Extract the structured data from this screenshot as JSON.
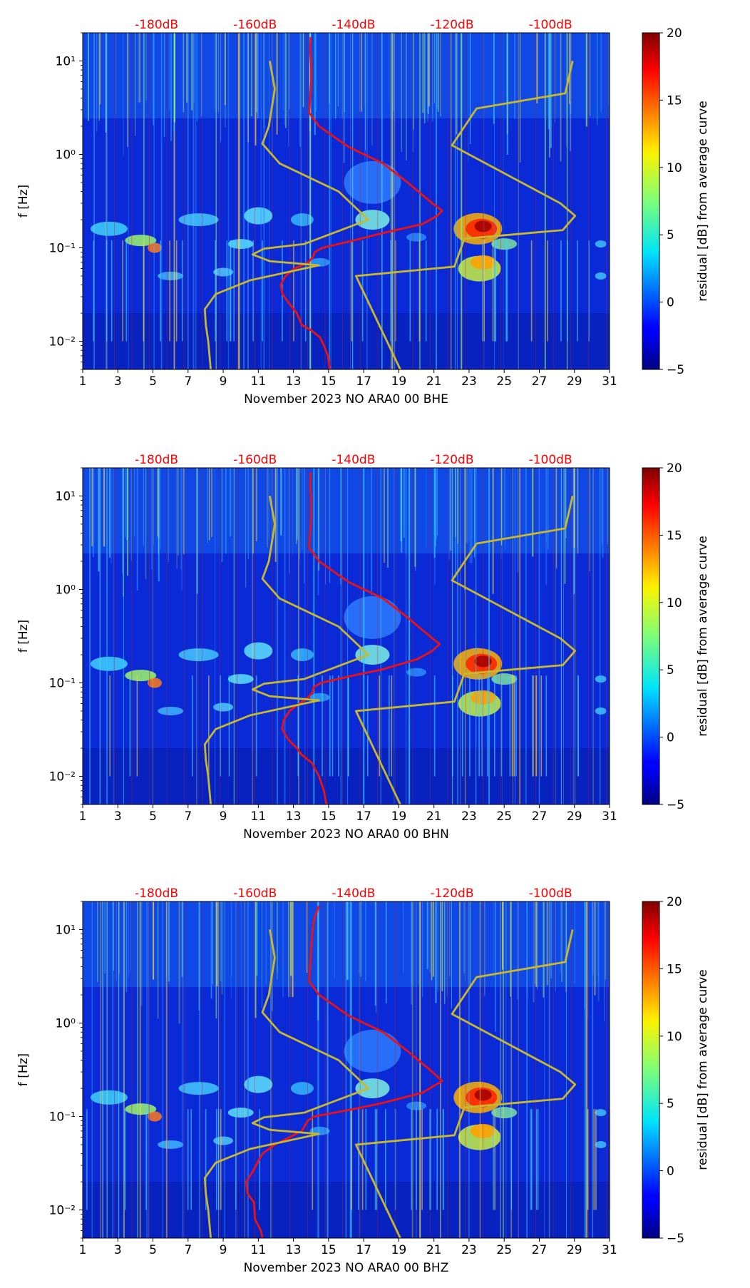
{
  "chart_data": [
    {
      "type": "heatmap",
      "xlabel": "November 2023 NO ARA0 00 BHE",
      "ylabel": "f [Hz]",
      "colorbar_label": "residual [dB] from average curve",
      "clim": [
        -5,
        20
      ],
      "colorbar_ticks": [
        "20",
        "15",
        "10",
        "5",
        "0",
        "−5"
      ],
      "colorbar_tick_values": [
        20,
        15,
        10,
        5,
        0,
        -5
      ],
      "xlim": [
        1,
        31
      ],
      "x_ticks": [
        "1",
        "3",
        "5",
        "7",
        "9",
        "11",
        "13",
        "15",
        "17",
        "19",
        "21",
        "23",
        "25",
        "27",
        "29",
        "31"
      ],
      "x_tick_values": [
        1,
        3,
        5,
        7,
        9,
        11,
        13,
        15,
        17,
        19,
        21,
        23,
        25,
        27,
        29,
        31
      ],
      "ylim": [
        0.005,
        20
      ],
      "y_scale": "log",
      "y_ticks": [
        "10¹",
        "10⁰",
        "10⁻¹",
        "10⁻²"
      ],
      "y_tick_values": [
        10,
        1,
        0.1,
        0.01
      ],
      "top_axis_ticks": [
        "-180dB",
        "-160dB",
        "-140dB",
        "-120dB",
        "-100dB"
      ],
      "top_axis_values": [
        -180,
        -160,
        -140,
        -120,
        -100
      ],
      "top_axis_color": "#ff0000",
      "series": [
        {
          "name": "average PSD (red)",
          "color": "#ee1111",
          "points": [
            [
              0.005,
              -144.8
            ],
            [
              0.007,
              -145.2
            ],
            [
              0.009,
              -146
            ],
            [
              0.011,
              -146.8
            ],
            [
              0.013,
              -148.5
            ],
            [
              0.015,
              -150.5
            ],
            [
              0.02,
              -151.5
            ],
            [
              0.025,
              -153
            ],
            [
              0.032,
              -154.4
            ],
            [
              0.04,
              -154.8
            ],
            [
              0.05,
              -153.8
            ],
            [
              0.06,
              -152
            ],
            [
              0.07,
              -149.2
            ],
            [
              0.08,
              -148.2
            ],
            [
              0.09,
              -147.9
            ],
            [
              0.1,
              -146.3
            ],
            [
              0.12,
              -140
            ],
            [
              0.14,
              -135
            ],
            [
              0.18,
              -126
            ],
            [
              0.22,
              -123
            ],
            [
              0.25,
              -122
            ],
            [
              0.3,
              -124
            ],
            [
              0.5,
              -129
            ],
            [
              0.8,
              -134
            ],
            [
              1.2,
              -141
            ],
            [
              2,
              -147
            ],
            [
              2.8,
              -149
            ],
            [
              4,
              -148.8
            ],
            [
              6,
              -148.6
            ],
            [
              9,
              -148.6
            ],
            [
              13,
              -148.8
            ],
            [
              18,
              -148.7
            ]
          ]
        },
        {
          "name": "NLNM (yellow)",
          "color": "#c8b82e",
          "points": [
            [
              0.005,
              -169
            ],
            [
              0.01,
              -169.5
            ],
            [
              0.015,
              -170
            ],
            [
              0.022,
              -170.2
            ],
            [
              0.032,
              -168
            ],
            [
              0.045,
              -161
            ],
            [
              0.065,
              -147
            ],
            [
              0.072,
              -157
            ],
            [
              0.085,
              -160.5
            ],
            [
              0.098,
              -158.2
            ],
            [
              0.11,
              -150
            ],
            [
              0.2,
              -137
            ],
            [
              0.4,
              -143
            ],
            [
              0.8,
              -155
            ],
            [
              1.3,
              -158.5
            ],
            [
              2,
              -157.2
            ],
            [
              5,
              -156
            ],
            [
              10,
              -157
            ]
          ]
        },
        {
          "name": "NHNM (yellow)",
          "color": "#c8b82e",
          "points": [
            [
              0.005,
              -130.5
            ],
            [
              0.05,
              -139.5
            ],
            [
              0.063,
              -119.5
            ],
            [
              0.125,
              -117.5
            ],
            [
              0.155,
              -97.5
            ],
            [
              0.22,
              -95
            ],
            [
              0.3,
              -98
            ],
            [
              1.25,
              -120
            ],
            [
              3.1,
              -115
            ],
            [
              4.5,
              -97
            ],
            [
              10,
              -95.5
            ]
          ]
        }
      ]
    },
    {
      "type": "heatmap",
      "xlabel": "November 2023 NO ARA0 00 BHN",
      "ylabel": "f [Hz]",
      "colorbar_label": "residual [dB] from average curve",
      "clim": [
        -5,
        20
      ],
      "colorbar_ticks": [
        "20",
        "15",
        "10",
        "5",
        "0",
        "−5"
      ],
      "colorbar_tick_values": [
        20,
        15,
        10,
        5,
        0,
        -5
      ],
      "xlim": [
        1,
        31
      ],
      "x_ticks": [
        "1",
        "3",
        "5",
        "7",
        "9",
        "11",
        "13",
        "15",
        "17",
        "19",
        "21",
        "23",
        "25",
        "27",
        "29",
        "31"
      ],
      "x_tick_values": [
        1,
        3,
        5,
        7,
        9,
        11,
        13,
        15,
        17,
        19,
        21,
        23,
        25,
        27,
        29,
        31
      ],
      "ylim": [
        0.005,
        20
      ],
      "y_scale": "log",
      "y_ticks": [
        "10¹",
        "10⁰",
        "10⁻¹",
        "10⁻²"
      ],
      "y_tick_values": [
        10,
        1,
        0.1,
        0.01
      ],
      "top_axis_ticks": [
        "-180dB",
        "-160dB",
        "-140dB",
        "-120dB",
        "-100dB"
      ],
      "top_axis_values": [
        -180,
        -160,
        -140,
        -120,
        -100
      ],
      "top_axis_color": "#ff0000",
      "series": [
        {
          "name": "average PSD (red)",
          "color": "#ee1111",
          "points": [
            [
              0.005,
              -145.5
            ],
            [
              0.007,
              -146
            ],
            [
              0.01,
              -147
            ],
            [
              0.014,
              -148.5
            ],
            [
              0.017,
              -150.5
            ],
            [
              0.02,
              -151.5
            ],
            [
              0.025,
              -153.3
            ],
            [
              0.032,
              -154.5
            ],
            [
              0.04,
              -154.2
            ],
            [
              0.05,
              -153
            ],
            [
              0.06,
              -151
            ],
            [
              0.07,
              -149.2
            ],
            [
              0.08,
              -148.3
            ],
            [
              0.09,
              -148.1
            ],
            [
              0.1,
              -146.6
            ],
            [
              0.12,
              -140
            ],
            [
              0.14,
              -134
            ],
            [
              0.18,
              -127
            ],
            [
              0.22,
              -124
            ],
            [
              0.26,
              -122.5
            ],
            [
              0.3,
              -124
            ],
            [
              0.5,
              -129
            ],
            [
              0.8,
              -134
            ],
            [
              1.2,
              -141
            ],
            [
              2,
              -147
            ],
            [
              2.8,
              -149
            ],
            [
              4,
              -148.8
            ],
            [
              6,
              -148.6
            ],
            [
              9,
              -148.6
            ],
            [
              13,
              -148.8
            ],
            [
              18,
              -148.7
            ]
          ]
        },
        {
          "name": "NLNM (yellow)",
          "color": "#c8b82e",
          "points": [
            [
              0.005,
              -169
            ],
            [
              0.01,
              -169.5
            ],
            [
              0.015,
              -170
            ],
            [
              0.022,
              -170.2
            ],
            [
              0.032,
              -168
            ],
            [
              0.045,
              -161
            ],
            [
              0.065,
              -147
            ],
            [
              0.072,
              -157
            ],
            [
              0.085,
              -160.5
            ],
            [
              0.098,
              -158.2
            ],
            [
              0.11,
              -150
            ],
            [
              0.2,
              -137
            ],
            [
              0.4,
              -143
            ],
            [
              0.8,
              -155
            ],
            [
              1.3,
              -158.5
            ],
            [
              2,
              -157.2
            ],
            [
              5,
              -156
            ],
            [
              10,
              -157
            ]
          ]
        },
        {
          "name": "NHNM (yellow)",
          "color": "#c8b82e",
          "points": [
            [
              0.005,
              -130.5
            ],
            [
              0.05,
              -139.5
            ],
            [
              0.063,
              -119.5
            ],
            [
              0.125,
              -117.5
            ],
            [
              0.155,
              -97.5
            ],
            [
              0.22,
              -95
            ],
            [
              0.3,
              -98
            ],
            [
              1.25,
              -120
            ],
            [
              3.1,
              -115
            ],
            [
              4.5,
              -97
            ],
            [
              10,
              -95.5
            ]
          ]
        }
      ]
    },
    {
      "type": "heatmap",
      "xlabel": "November 2023 NO ARA0 00 BHZ",
      "ylabel": "f [Hz]",
      "colorbar_label": "residual [dB] from average curve",
      "clim": [
        -5,
        20
      ],
      "colorbar_ticks": [
        "20",
        "15",
        "10",
        "5",
        "0",
        "−5"
      ],
      "colorbar_tick_values": [
        20,
        15,
        10,
        5,
        0,
        -5
      ],
      "xlim": [
        1,
        31
      ],
      "x_ticks": [
        "1",
        "3",
        "5",
        "7",
        "9",
        "11",
        "13",
        "15",
        "17",
        "19",
        "21",
        "23",
        "25",
        "27",
        "29",
        "31"
      ],
      "x_tick_values": [
        1,
        3,
        5,
        7,
        9,
        11,
        13,
        15,
        17,
        19,
        21,
        23,
        25,
        27,
        29,
        31
      ],
      "ylim": [
        0.005,
        20
      ],
      "y_scale": "log",
      "y_ticks": [
        "10¹",
        "10⁰",
        "10⁻¹",
        "10⁻²"
      ],
      "y_tick_values": [
        10,
        1,
        0.1,
        0.01
      ],
      "top_axis_ticks": [
        "-180dB",
        "-160dB",
        "-140dB",
        "-120dB",
        "-100dB"
      ],
      "top_axis_values": [
        -180,
        -160,
        -140,
        -120,
        -100
      ],
      "top_axis_color": "#ff0000",
      "series": [
        {
          "name": "average PSD (red)",
          "color": "#ee1111",
          "points": [
            [
              0.005,
              -158.5
            ],
            [
              0.006,
              -158.8
            ],
            [
              0.008,
              -160
            ],
            [
              0.012,
              -160.2
            ],
            [
              0.015,
              -161.5
            ],
            [
              0.02,
              -161.8
            ],
            [
              0.025,
              -160.6
            ],
            [
              0.032,
              -159.5
            ],
            [
              0.04,
              -158.5
            ],
            [
              0.05,
              -156
            ],
            [
              0.06,
              -153
            ],
            [
              0.07,
              -150.5
            ],
            [
              0.09,
              -149.3
            ],
            [
              0.1,
              -148
            ],
            [
              0.12,
              -140
            ],
            [
              0.14,
              -134
            ],
            [
              0.18,
              -126
            ],
            [
              0.24,
              -122
            ],
            [
              0.3,
              -124
            ],
            [
              0.5,
              -129
            ],
            [
              0.8,
              -134
            ],
            [
              1.2,
              -141
            ],
            [
              2,
              -147
            ],
            [
              2.8,
              -149
            ],
            [
              4,
              -148.8
            ],
            [
              6,
              -148.6
            ],
            [
              9,
              -148.4
            ],
            [
              13,
              -148
            ],
            [
              18,
              -147
            ]
          ]
        },
        {
          "name": "NLNM (yellow)",
          "color": "#c8b82e",
          "points": [
            [
              0.005,
              -169
            ],
            [
              0.01,
              -169.5
            ],
            [
              0.015,
              -170
            ],
            [
              0.022,
              -170.2
            ],
            [
              0.032,
              -168
            ],
            [
              0.045,
              -161
            ],
            [
              0.065,
              -147
            ],
            [
              0.072,
              -157
            ],
            [
              0.085,
              -160.5
            ],
            [
              0.098,
              -158.2
            ],
            [
              0.11,
              -150
            ],
            [
              0.2,
              -137
            ],
            [
              0.4,
              -143
            ],
            [
              0.8,
              -155
            ],
            [
              1.3,
              -158.5
            ],
            [
              2,
              -157.2
            ],
            [
              5,
              -156
            ],
            [
              10,
              -157
            ]
          ]
        },
        {
          "name": "NHNM (yellow)",
          "color": "#c8b82e",
          "points": [
            [
              0.005,
              -130.5
            ],
            [
              0.05,
              -139.5
            ],
            [
              0.063,
              -119.5
            ],
            [
              0.125,
              -117.5
            ],
            [
              0.155,
              -97.5
            ],
            [
              0.22,
              -95
            ],
            [
              0.3,
              -98
            ],
            [
              1.25,
              -120
            ],
            [
              3.1,
              -115
            ],
            [
              4.5,
              -97
            ],
            [
              10,
              -95.5
            ]
          ]
        }
      ]
    }
  ]
}
